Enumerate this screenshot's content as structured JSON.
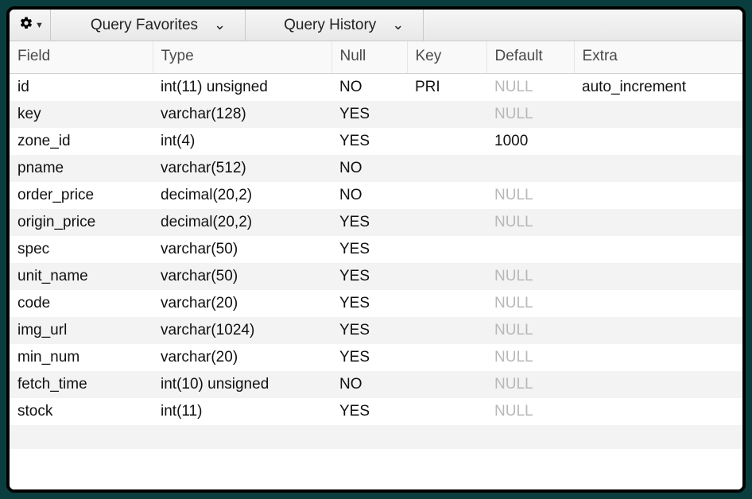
{
  "toolbar": {
    "favorites_label": "Query Favorites",
    "history_label": "Query History"
  },
  "table": {
    "headers": {
      "field": "Field",
      "type": "Type",
      "null": "Null",
      "key": "Key",
      "default": "Default",
      "extra": "Extra"
    },
    "columns": [
      "field",
      "type",
      "null",
      "key",
      "default",
      "extra"
    ],
    "rows": [
      {
        "field": "id",
        "type": "int(11) unsigned",
        "null": "NO",
        "key": "PRI",
        "default": "NULL",
        "default_is_null": true,
        "extra": "auto_increment"
      },
      {
        "field": "key",
        "type": "varchar(128)",
        "null": "YES",
        "key": "",
        "default": "NULL",
        "default_is_null": true,
        "extra": ""
      },
      {
        "field": "zone_id",
        "type": "int(4)",
        "null": "YES",
        "key": "",
        "default": "1000",
        "default_is_null": false,
        "extra": ""
      },
      {
        "field": "pname",
        "type": "varchar(512)",
        "null": "NO",
        "key": "",
        "default": "",
        "default_is_null": false,
        "extra": ""
      },
      {
        "field": "order_price",
        "type": "decimal(20,2)",
        "null": "NO",
        "key": "",
        "default": "NULL",
        "default_is_null": true,
        "extra": ""
      },
      {
        "field": "origin_price",
        "type": "decimal(20,2)",
        "null": "YES",
        "key": "",
        "default": "NULL",
        "default_is_null": true,
        "extra": ""
      },
      {
        "field": "spec",
        "type": "varchar(50)",
        "null": "YES",
        "key": "",
        "default": "",
        "default_is_null": false,
        "extra": ""
      },
      {
        "field": "unit_name",
        "type": "varchar(50)",
        "null": "YES",
        "key": "",
        "default": "NULL",
        "default_is_null": true,
        "extra": ""
      },
      {
        "field": "code",
        "type": "varchar(20)",
        "null": "YES",
        "key": "",
        "default": "NULL",
        "default_is_null": true,
        "extra": ""
      },
      {
        "field": "img_url",
        "type": "varchar(1024)",
        "null": "YES",
        "key": "",
        "default": "NULL",
        "default_is_null": true,
        "extra": ""
      },
      {
        "field": "min_num",
        "type": "varchar(20)",
        "null": "YES",
        "key": "",
        "default": "NULL",
        "default_is_null": true,
        "extra": ""
      },
      {
        "field": "fetch_time",
        "type": "int(10) unsigned",
        "null": "NO",
        "key": "",
        "default": "NULL",
        "default_is_null": true,
        "extra": ""
      },
      {
        "field": "stock",
        "type": "int(11)",
        "null": "YES",
        "key": "",
        "default": "NULL",
        "default_is_null": true,
        "extra": ""
      }
    ]
  },
  "styles": {
    "row_alt_bg": "#f3f3f3",
    "null_color": "#b8b8b8",
    "header_bg": "#f9f9f9",
    "border_color": "#d0d0d0",
    "font_size_body": 19,
    "font_size_header": 19
  }
}
